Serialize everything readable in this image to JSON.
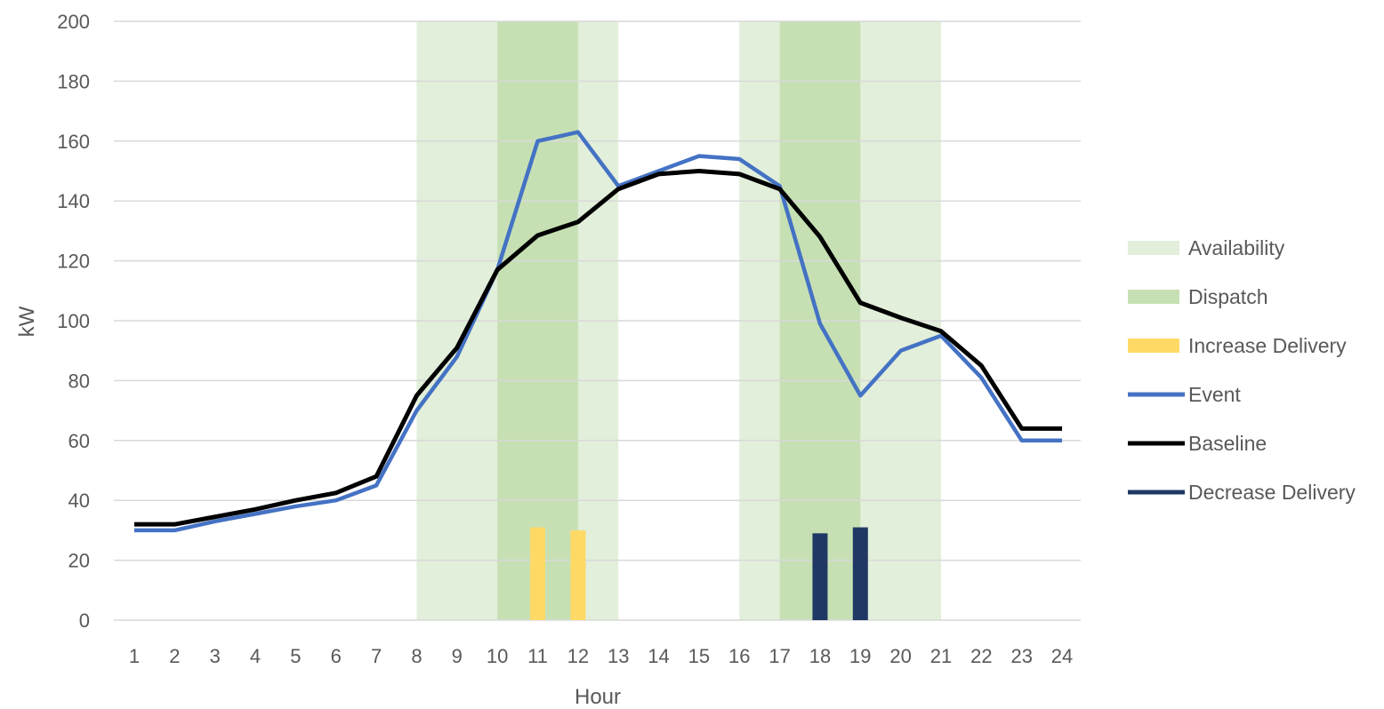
{
  "chart_data": {
    "type": "line",
    "xlabel": "Hour",
    "ylabel": "kW",
    "ylim": [
      0,
      200
    ],
    "yticks": [
      0,
      20,
      40,
      60,
      80,
      100,
      120,
      140,
      160,
      180,
      200
    ],
    "categories": [
      "1",
      "2",
      "3",
      "4",
      "5",
      "6",
      "7",
      "8",
      "9",
      "10",
      "11",
      "12",
      "13",
      "14",
      "15",
      "16",
      "17",
      "18",
      "19",
      "20",
      "21",
      "22",
      "23",
      "24"
    ],
    "grid": true,
    "legend_position": "right",
    "bands": [
      {
        "name": "Availability",
        "color": "#e2efda",
        "ranges": [
          [
            8,
            13
          ],
          [
            16,
            21
          ]
        ]
      },
      {
        "name": "Dispatch",
        "color": "#c6e0b4",
        "ranges": [
          [
            10,
            12
          ],
          [
            17,
            19
          ]
        ]
      }
    ],
    "bars": [
      {
        "name": "Increase Delivery",
        "color": "#ffd966",
        "points": [
          {
            "x": 11,
            "y": 31
          },
          {
            "x": 12,
            "y": 30
          }
        ]
      },
      {
        "name": "Decrease Delivery",
        "color": "#1f3864",
        "points": [
          {
            "x": 18,
            "y": 29
          },
          {
            "x": 19,
            "y": 31
          }
        ]
      }
    ],
    "series": [
      {
        "name": "Event",
        "color": "#4472c4",
        "values": [
          30,
          30,
          33,
          35.5,
          38,
          40,
          45,
          70,
          88,
          117,
          160,
          163,
          145,
          150,
          155,
          154,
          145,
          99,
          75,
          90,
          95,
          81,
          60,
          60
        ]
      },
      {
        "name": "Baseline",
        "color": "#000000",
        "values": [
          32,
          32,
          34.5,
          37,
          40,
          42.5,
          48,
          75,
          91,
          117,
          128.5,
          133,
          144,
          149,
          150,
          149,
          144,
          128,
          106,
          101,
          96.5,
          85,
          64,
          64
        ]
      }
    ],
    "legend": [
      {
        "label": "Availability",
        "kind": "box",
        "color": "#e2efda"
      },
      {
        "label": "Dispatch",
        "kind": "box",
        "color": "#c6e0b4"
      },
      {
        "label": "Increase Delivery",
        "kind": "box",
        "color": "#ffd966"
      },
      {
        "label": "Event",
        "kind": "line",
        "color": "#4472c4"
      },
      {
        "label": "Baseline",
        "kind": "line",
        "color": "#000000"
      },
      {
        "label": "Decrease Delivery",
        "kind": "line",
        "color": "#1f3864"
      }
    ]
  }
}
